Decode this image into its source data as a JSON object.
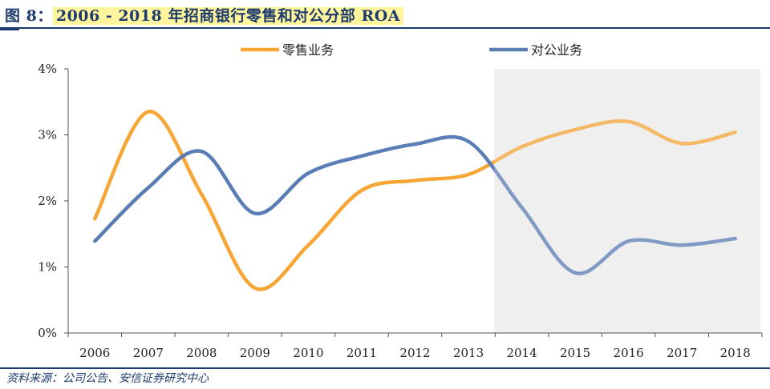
{
  "title": {
    "prefix": "图 8：",
    "text": "2006 - 2018 年招商银行零售和对公分部 ROA"
  },
  "source": "资料来源：公司公告、安信证券研究中心",
  "chart_data": {
    "type": "line",
    "x": [
      "2006",
      "2007",
      "2008",
      "2009",
      "2010",
      "2011",
      "2012",
      "2013",
      "2014",
      "2015",
      "2016",
      "2017",
      "2018"
    ],
    "series": [
      {
        "name": "零售业务",
        "color": "#f7a535",
        "values": [
          1.73,
          3.35,
          2.1,
          0.68,
          1.33,
          2.16,
          2.31,
          2.4,
          2.82,
          3.08,
          3.2,
          2.87,
          3.04
        ]
      },
      {
        "name": "对公业务",
        "color": "#5b7db6",
        "values": [
          1.39,
          2.2,
          2.75,
          1.81,
          2.42,
          2.68,
          2.86,
          2.9,
          1.9,
          0.91,
          1.39,
          1.33,
          1.43
        ]
      }
    ],
    "ylim": [
      0,
      4
    ],
    "yticks": [
      0,
      1,
      2,
      3,
      4
    ],
    "ytick_labels": [
      "0%",
      "1%",
      "2%",
      "3%",
      "4%"
    ],
    "grid": false,
    "legend": "top",
    "highlight_range": [
      "2014",
      "2018"
    ],
    "highlight_color": "#efefef"
  }
}
